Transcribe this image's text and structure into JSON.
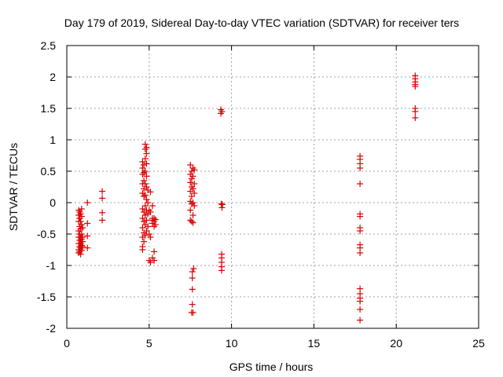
{
  "chart_data": {
    "type": "scatter",
    "title": "Day 179 of 2019, Sidereal Day-to-day VTEC variation (SDTVAR) for receiver ters",
    "xlabel": "GPS time / hours",
    "ylabel": "SDTVAR / TECUs",
    "xlim": [
      0,
      25
    ],
    "ylim": [
      -2,
      2.5
    ],
    "xticks": [
      0,
      5,
      10,
      15,
      20,
      25
    ],
    "xtick_labels": [
      "0",
      "5",
      "10",
      "15",
      "20",
      "25"
    ],
    "yticks": [
      -2,
      -1.5,
      -1,
      -0.5,
      0,
      0.5,
      1,
      1.5,
      2,
      2.5
    ],
    "ytick_labels": [
      "-2",
      "-1.5",
      "-1",
      "-0.5",
      "0",
      "0.5",
      "1",
      "1.5",
      "2",
      "2.5"
    ],
    "grid": true,
    "marker": "+",
    "marker_color": "#dd0000",
    "series": [
      {
        "name": "SDTVAR",
        "points": [
          [
            0.72,
            -0.12
          ],
          [
            0.72,
            -0.2
          ],
          [
            0.72,
            -0.3
          ],
          [
            0.72,
            -0.45
          ],
          [
            0.72,
            -0.55
          ],
          [
            0.72,
            -0.65
          ],
          [
            0.72,
            -0.75
          ],
          [
            0.72,
            -0.8
          ],
          [
            0.78,
            -0.15
          ],
          [
            0.78,
            -0.25
          ],
          [
            0.78,
            -0.38
          ],
          [
            0.78,
            -0.5
          ],
          [
            0.78,
            -0.6
          ],
          [
            0.78,
            -0.7
          ],
          [
            0.78,
            -0.78
          ],
          [
            0.84,
            -0.18
          ],
          [
            0.84,
            -0.3
          ],
          [
            0.84,
            -0.42
          ],
          [
            0.84,
            -0.55
          ],
          [
            0.84,
            -0.65
          ],
          [
            0.84,
            -0.72
          ],
          [
            0.84,
            -0.82
          ],
          [
            0.9,
            -0.1
          ],
          [
            0.9,
            -0.22
          ],
          [
            0.9,
            -0.35
          ],
          [
            0.9,
            -0.5
          ],
          [
            0.9,
            -0.58
          ],
          [
            0.9,
            -0.68
          ],
          [
            0.9,
            -0.76
          ],
          [
            0.96,
            -0.4
          ],
          [
            0.96,
            -0.55
          ],
          [
            0.96,
            -0.62
          ],
          [
            0.96,
            -0.7
          ],
          [
            1.25,
            0.0
          ],
          [
            1.25,
            -0.33
          ],
          [
            1.25,
            -0.53
          ],
          [
            1.25,
            -0.72
          ],
          [
            2.15,
            0.18
          ],
          [
            2.15,
            0.07
          ],
          [
            2.15,
            -0.16
          ],
          [
            2.15,
            -0.28
          ],
          [
            4.6,
            0.65
          ],
          [
            4.6,
            0.55
          ],
          [
            4.6,
            0.45
          ],
          [
            4.6,
            0.3
          ],
          [
            4.6,
            0.15
          ],
          [
            4.6,
            -0.1
          ],
          [
            4.6,
            -0.25
          ],
          [
            4.6,
            -0.4
          ],
          [
            4.6,
            -0.55
          ],
          [
            4.6,
            -0.7
          ],
          [
            4.6,
            -0.75
          ],
          [
            4.68,
            0.6
          ],
          [
            4.68,
            0.48
          ],
          [
            4.68,
            0.35
          ],
          [
            4.68,
            0.22
          ],
          [
            4.68,
            0.1
          ],
          [
            4.68,
            -0.15
          ],
          [
            4.68,
            -0.3
          ],
          [
            4.68,
            -0.48
          ],
          [
            4.68,
            -0.62
          ],
          [
            4.76,
            0.93
          ],
          [
            4.76,
            0.85
          ],
          [
            4.76,
            0.7
          ],
          [
            4.76,
            0.5
          ],
          [
            4.76,
            0.3
          ],
          [
            4.76,
            0.12
          ],
          [
            4.76,
            -0.05
          ],
          [
            4.76,
            -0.2
          ],
          [
            4.76,
            -0.35
          ],
          [
            4.76,
            -0.52
          ],
          [
            4.84,
            0.88
          ],
          [
            4.84,
            0.78
          ],
          [
            4.84,
            0.62
          ],
          [
            4.84,
            0.42
          ],
          [
            4.84,
            0.25
          ],
          [
            4.84,
            0.05
          ],
          [
            4.84,
            -0.12
          ],
          [
            4.84,
            -0.28
          ],
          [
            4.84,
            -0.45
          ],
          [
            4.92,
            0.2
          ],
          [
            4.92,
            0.0
          ],
          [
            4.92,
            -0.18
          ],
          [
            4.92,
            -0.38
          ],
          [
            5.0,
            -0.12
          ],
          [
            5.0,
            -0.5
          ],
          [
            5.0,
            -0.92
          ],
          [
            5.08,
            0.17
          ],
          [
            5.08,
            -0.15
          ],
          [
            5.08,
            -0.55
          ],
          [
            5.08,
            -0.95
          ],
          [
            5.2,
            -0.05
          ],
          [
            5.2,
            -0.25
          ],
          [
            5.2,
            -0.28
          ],
          [
            5.2,
            -0.33
          ],
          [
            5.2,
            -0.88
          ],
          [
            5.3,
            -0.25
          ],
          [
            5.3,
            -0.3
          ],
          [
            5.3,
            -0.38
          ],
          [
            5.3,
            -0.78
          ],
          [
            5.3,
            -0.92
          ],
          [
            5.38,
            -0.27
          ],
          [
            5.38,
            -0.35
          ],
          [
            7.5,
            0.6
          ],
          [
            7.5,
            0.45
          ],
          [
            7.5,
            0.32
          ],
          [
            7.5,
            0.18
          ],
          [
            7.5,
            0.02
          ],
          [
            7.5,
            -0.12
          ],
          [
            7.5,
            -0.28
          ],
          [
            7.58,
            0.5
          ],
          [
            7.58,
            0.38
          ],
          [
            7.58,
            0.25
          ],
          [
            7.58,
            0.1
          ],
          [
            7.58,
            -0.02
          ],
          [
            7.58,
            -0.3
          ],
          [
            7.66,
            0.55
          ],
          [
            7.66,
            0.42
          ],
          [
            7.66,
            0.22
          ],
          [
            7.66,
            0.0
          ],
          [
            7.66,
            -0.2
          ],
          [
            7.66,
            -0.32
          ],
          [
            7.74,
            0.52
          ],
          [
            7.74,
            0.3
          ],
          [
            7.74,
            0.15
          ],
          [
            7.74,
            -0.05
          ],
          [
            7.62,
            -1.1
          ],
          [
            7.62,
            -1.2
          ],
          [
            7.62,
            -1.38
          ],
          [
            7.62,
            -1.62
          ],
          [
            7.58,
            -1.75
          ],
          [
            7.66,
            -1.75
          ],
          [
            7.7,
            -1.05
          ],
          [
            9.35,
            1.48
          ],
          [
            9.35,
            1.42
          ],
          [
            9.42,
            1.45
          ],
          [
            9.38,
            -0.02
          ],
          [
            9.42,
            -0.08
          ],
          [
            9.45,
            -0.03
          ],
          [
            9.4,
            -0.82
          ],
          [
            9.4,
            -0.88
          ],
          [
            9.4,
            -0.95
          ],
          [
            9.4,
            -1.02
          ],
          [
            9.4,
            -1.08
          ],
          [
            17.8,
            0.74
          ],
          [
            17.8,
            0.69
          ],
          [
            17.8,
            0.62
          ],
          [
            17.8,
            0.55
          ],
          [
            17.8,
            0.3
          ],
          [
            17.8,
            -0.18
          ],
          [
            17.8,
            -0.22
          ],
          [
            17.8,
            -0.4
          ],
          [
            17.8,
            -0.45
          ],
          [
            17.8,
            -0.67
          ],
          [
            17.8,
            -0.72
          ],
          [
            17.8,
            -0.8
          ],
          [
            17.8,
            -1.37
          ],
          [
            17.8,
            -1.45
          ],
          [
            17.8,
            -1.52
          ],
          [
            17.8,
            -1.57
          ],
          [
            17.8,
            -1.7
          ],
          [
            17.8,
            -1.87
          ],
          [
            21.15,
            2.02
          ],
          [
            21.15,
            1.97
          ],
          [
            21.15,
            1.92
          ],
          [
            21.15,
            1.88
          ],
          [
            21.15,
            1.85
          ],
          [
            21.15,
            1.5
          ],
          [
            21.15,
            1.45
          ],
          [
            21.15,
            1.35
          ]
        ]
      }
    ]
  }
}
